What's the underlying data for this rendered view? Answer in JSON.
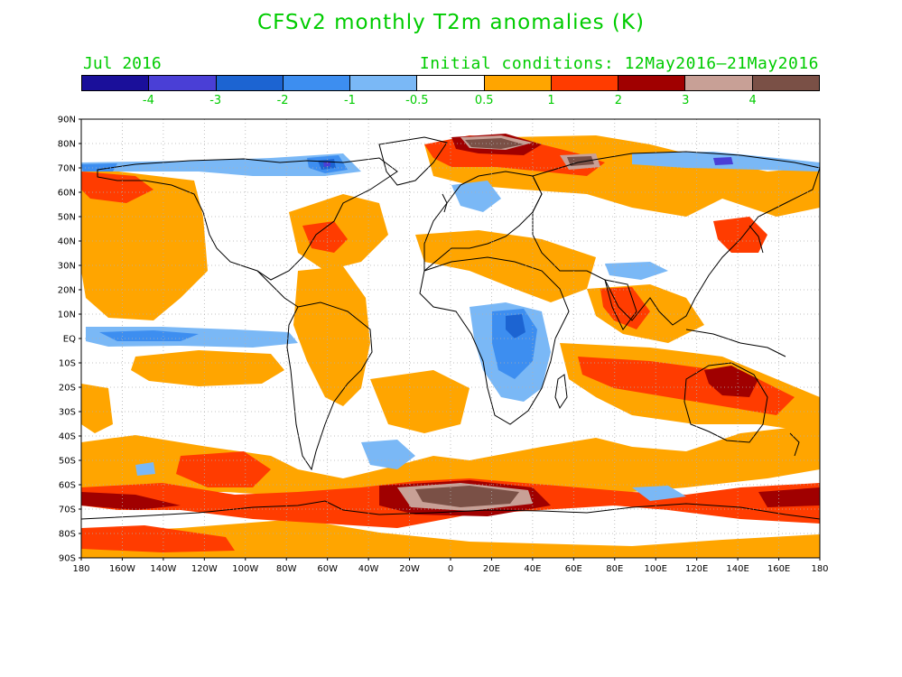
{
  "title": "CFSv2 monthly T2m anomalies (K)",
  "forecast_month": "Jul 2016",
  "initial_conditions": "Initial conditions: 12May2016–21May2016",
  "colorbar": {
    "colors": [
      "#1a0f9a",
      "#4a3fd6",
      "#1c64d2",
      "#3d8ef0",
      "#7ab8f6",
      "#ffffff",
      "#ffa500",
      "#ff3c00",
      "#a00000",
      "#c8a096",
      "#7a5046"
    ],
    "labels": [
      "-4",
      "-3",
      "-2",
      "-1",
      "-0.5",
      "0.5",
      "1",
      "2",
      "3",
      "4"
    ]
  },
  "axes": {
    "lat_labels": [
      "90N",
      "80N",
      "70N",
      "60N",
      "50N",
      "40N",
      "30N",
      "20N",
      "10N",
      "EQ",
      "10S",
      "20S",
      "30S",
      "40S",
      "50S",
      "60S",
      "70S",
      "80S",
      "90S"
    ],
    "lon_labels": [
      "180",
      "160W",
      "140W",
      "120W",
      "100W",
      "80W",
      "60W",
      "40W",
      "20W",
      "0",
      "20E",
      "40E",
      "60E",
      "80E",
      "100E",
      "120E",
      "140E",
      "160E",
      "180"
    ]
  },
  "anomaly_regions": [
    {
      "level": "+0.5..1",
      "color": "#ffa500",
      "area": "Southern Ocean band 40S-60S"
    },
    {
      "level": "+1..2",
      "color": "#ff3c00",
      "area": "Southern Ocean / Antarctic coast"
    },
    {
      "level": "+3..4",
      "color": "#c8a096",
      "area": "Weddell Sea / Antarctica"
    },
    {
      "level": ">4",
      "color": "#7a5046",
      "area": "Antarctica near 0E"
    },
    {
      "level": ">4",
      "color": "#7a5046",
      "area": "Greenland / Barents Sea"
    },
    {
      "level": "+2..3",
      "color": "#a00000",
      "area": "Northern Australia"
    },
    {
      "level": "-0.5..-1",
      "color": "#7ab8f6",
      "area": "Equatorial East Pacific"
    },
    {
      "level": "-1..-2",
      "color": "#3d8ef0",
      "area": "Central Africa"
    }
  ]
}
